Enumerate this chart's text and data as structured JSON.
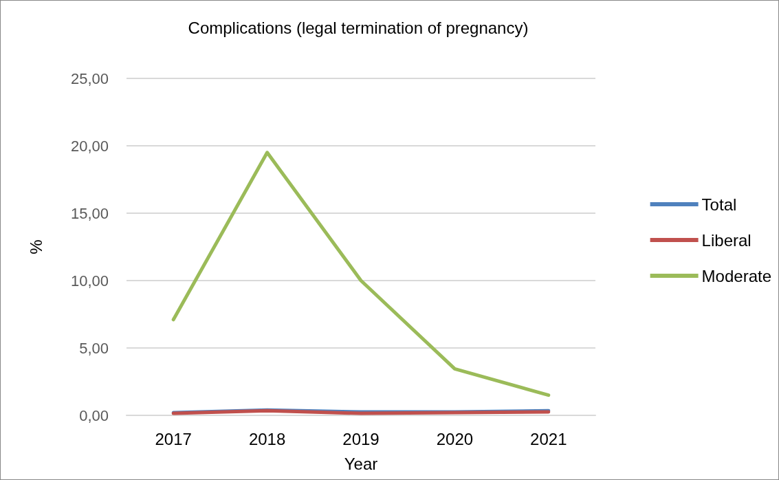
{
  "chart_data": {
    "type": "line",
    "title": "Complications (legal termination of pregnancy)",
    "xlabel": "Year",
    "ylabel": "%",
    "categories": [
      "2017",
      "2018",
      "2019",
      "2020",
      "2021"
    ],
    "series": [
      {
        "name": "Total",
        "color": "#4f81bd",
        "values": [
          0.2,
          0.4,
          0.25,
          0.25,
          0.35
        ]
      },
      {
        "name": "Liberal",
        "color": "#c0504d",
        "values": [
          0.15,
          0.35,
          0.15,
          0.2,
          0.25
        ]
      },
      {
        "name": "Moderate",
        "color": "#9bbb59",
        "values": [
          7.1,
          19.5,
          10.0,
          3.45,
          1.5
        ]
      }
    ],
    "ylim": [
      0,
      25
    ],
    "yticks": [
      {
        "value": 0,
        "label": "0,00"
      },
      {
        "value": 5,
        "label": "5,00"
      },
      {
        "value": 10,
        "label": "10,00"
      },
      {
        "value": 15,
        "label": "15,00"
      },
      {
        "value": 20,
        "label": "20,00"
      },
      {
        "value": 25,
        "label": "25,00"
      }
    ],
    "grid": "y",
    "legend": "right",
    "marker": "none",
    "line_style": "solid"
  }
}
